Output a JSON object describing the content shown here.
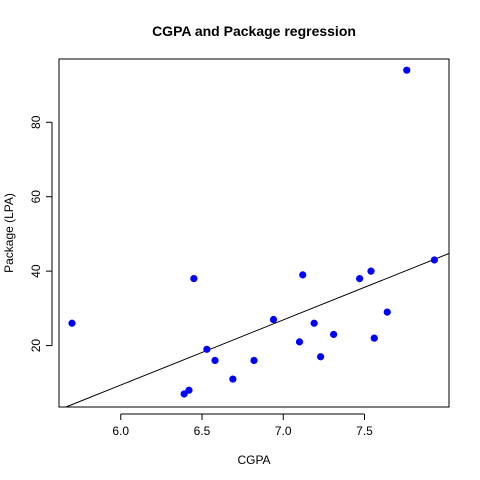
{
  "chart_data": {
    "type": "scatter",
    "title": "CGPA and Package regression",
    "xlabel": "CGPA",
    "ylabel": "Package (LPA)",
    "xlim": [
      5.62,
      8.02
    ],
    "ylim": [
      3.5,
      97.0
    ],
    "x_ticks": [
      {
        "value": 6.0,
        "label": "6.0"
      },
      {
        "value": 6.5,
        "label": "6.5"
      },
      {
        "value": 7.0,
        "label": "7.0"
      },
      {
        "value": 7.5,
        "label": "7.5"
      }
    ],
    "y_ticks": [
      {
        "value": 20,
        "label": "20"
      },
      {
        "value": 40,
        "label": "40"
      },
      {
        "value": 60,
        "label": "60"
      },
      {
        "value": 80,
        "label": "80"
      }
    ],
    "grid": false,
    "points": [
      {
        "x": 5.7,
        "y": 26
      },
      {
        "x": 6.39,
        "y": 7
      },
      {
        "x": 6.42,
        "y": 8
      },
      {
        "x": 6.45,
        "y": 38
      },
      {
        "x": 6.53,
        "y": 19
      },
      {
        "x": 6.58,
        "y": 16
      },
      {
        "x": 6.69,
        "y": 11
      },
      {
        "x": 6.82,
        "y": 16
      },
      {
        "x": 6.94,
        "y": 27
      },
      {
        "x": 7.1,
        "y": 21
      },
      {
        "x": 7.12,
        "y": 39
      },
      {
        "x": 7.19,
        "y": 26
      },
      {
        "x": 7.23,
        "y": 17
      },
      {
        "x": 7.31,
        "y": 23
      },
      {
        "x": 7.47,
        "y": 38
      },
      {
        "x": 7.54,
        "y": 40
      },
      {
        "x": 7.56,
        "y": 22
      },
      {
        "x": 7.64,
        "y": 29
      },
      {
        "x": 7.76,
        "y": 94
      },
      {
        "x": 7.93,
        "y": 43
      }
    ],
    "regression_line": {
      "intercept": -95.6,
      "slope": 17.5
    },
    "point_color": "#0000ff",
    "line_color": "#000000"
  }
}
